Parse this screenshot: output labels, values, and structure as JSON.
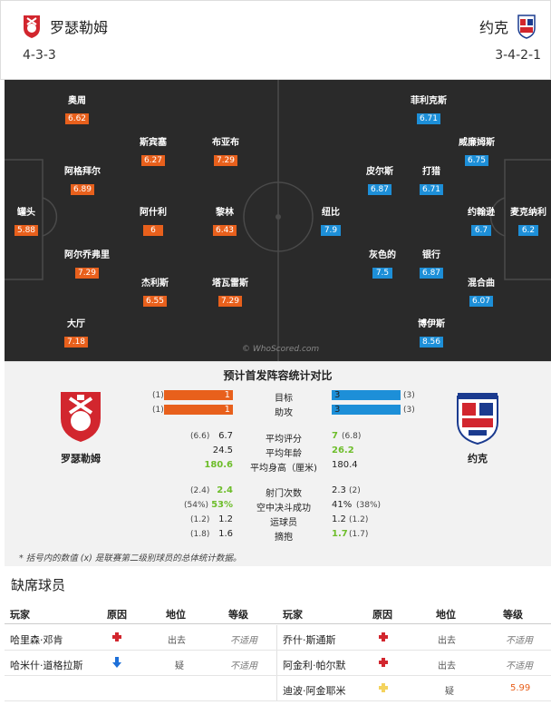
{
  "home": {
    "name": "罗瑟勒姆",
    "formation": "4-3-3",
    "color": "#e8601c"
  },
  "away": {
    "name": "约克",
    "formation": "3-4-2-1",
    "color": "#1d8fd8"
  },
  "watermark": "© WhoScored.com",
  "players_home": [
    {
      "name": "奥周",
      "rating": "6.62"
    },
    {
      "name": "斯宾塞",
      "rating": "6.27"
    },
    {
      "name": "布亚布",
      "rating": "7.29"
    },
    {
      "name": "阿格拜尔",
      "rating": "6.89"
    },
    {
      "name": "罐头",
      "rating": "5.88"
    },
    {
      "name": "阿什利",
      "rating": "6"
    },
    {
      "name": "黎林",
      "rating": "6.43"
    },
    {
      "name": "阿尔乔弗里",
      "rating": "7.29"
    },
    {
      "name": "杰利斯",
      "rating": "6.55"
    },
    {
      "name": "塔瓦雷斯",
      "rating": "7.29"
    },
    {
      "name": "大厅",
      "rating": "7.18"
    }
  ],
  "players_away": [
    {
      "name": "菲利克斯",
      "rating": "6.71"
    },
    {
      "name": "威廉姆斯",
      "rating": "6.75"
    },
    {
      "name": "皮尔斯",
      "rating": "6.87"
    },
    {
      "name": "打猎",
      "rating": "6.71"
    },
    {
      "name": "约翰逊",
      "rating": "6.7"
    },
    {
      "name": "麦克纳利",
      "rating": "6.2"
    },
    {
      "name": "纽比",
      "rating": "7.9"
    },
    {
      "name": "灰色的",
      "rating": "7.5"
    },
    {
      "name": "银行",
      "rating": "6.87"
    },
    {
      "name": "混合曲",
      "rating": "6.07"
    },
    {
      "name": "博伊斯",
      "rating": "8.56"
    }
  ],
  "compare": {
    "title": "预计首发阵容统计对比",
    "home_team": "罗瑟勒姆",
    "away_team": "约克",
    "bars": [
      {
        "label": "目标",
        "home": "1",
        "home_paren": "(1)",
        "away": "3",
        "away_paren": "(3)"
      },
      {
        "label": "助攻",
        "home": "1",
        "home_paren": "(1)",
        "away": "3",
        "away_paren": "(3)"
      }
    ],
    "stats1": [
      {
        "label": "平均评分",
        "home_paren": "(6.6)",
        "home": "6.7",
        "away": "7",
        "away_paren": "(6.8)"
      },
      {
        "label": "平均年龄",
        "home_paren": "",
        "home": "24.5",
        "away": "26.2",
        "away_paren": ""
      },
      {
        "label": "平均身高（厘米)",
        "home_paren": "",
        "home": "180.6",
        "away": "180.4",
        "away_paren": ""
      }
    ],
    "stats2": [
      {
        "label": "射门次数",
        "home_paren": "(2.4)",
        "home": "2.4",
        "away": "2.3",
        "away_paren": "(2)"
      },
      {
        "label": "空中决斗成功",
        "home_paren": "(54%)",
        "home": "53%",
        "away": "41%",
        "away_paren": "(38%)"
      },
      {
        "label": "运球员",
        "home_paren": "(1.2)",
        "home": "1.2",
        "away": "1.2",
        "away_paren": "(1.2)"
      },
      {
        "label": "摘抱",
        "home_paren": "(1.8)",
        "home": "1.6",
        "away": "1.7",
        "away_paren": "(1.7)"
      }
    ],
    "note": "* 括号内的数值 (x) 是联赛第二级别球员的总体统计数据。"
  },
  "absent": {
    "title": "缺席球员",
    "headers": {
      "player": "玩家",
      "reason": "原因",
      "position": "地位",
      "grade": "等级"
    },
    "home_rows": [
      {
        "player": "哈里森·邓肯",
        "reason_icon": "injury-cross-icon",
        "position": "出去",
        "grade": "不适用"
      },
      {
        "player": "哈米什·道格拉斯",
        "reason_icon": "arrow-down-icon",
        "position": "疑",
        "grade": "不适用"
      }
    ],
    "away_rows": [
      {
        "player": "乔什·斯通斯",
        "reason_icon": "injury-cross-icon",
        "position": "出去",
        "grade": "不适用"
      },
      {
        "player": "阿金利·帕尔默",
        "reason_icon": "injury-cross-icon",
        "position": "出去",
        "grade": "不适用"
      },
      {
        "player": "迪波·阿金耶米",
        "reason_icon": "doubtful-cross-icon",
        "position": "疑",
        "grade": "5.99"
      }
    ]
  }
}
